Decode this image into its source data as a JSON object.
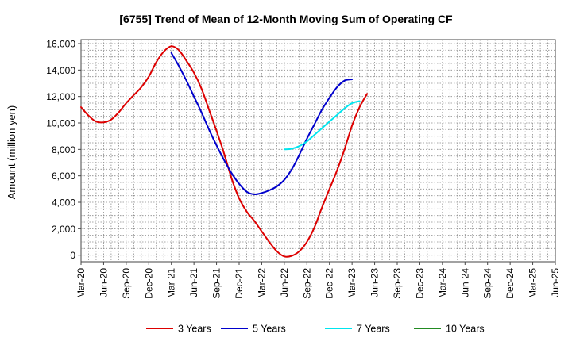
{
  "chart_data": {
    "type": "line",
    "title": "[6755]  Trend of Mean of 12-Month Moving Sum of Operating CF",
    "xlabel": "",
    "ylabel": "Amount (million yen)",
    "ylim": [
      -500,
      16300
    ],
    "yticks": [
      0,
      2000,
      4000,
      6000,
      8000,
      10000,
      12000,
      14000,
      16000
    ],
    "ytick_labels": [
      "0",
      "2,000",
      "4,000",
      "6,000",
      "8,000",
      "10,000",
      "12,000",
      "14,000",
      "16,000"
    ],
    "xticks": [
      "Mar-20",
      "Jun-20",
      "Sep-20",
      "Dec-20",
      "Mar-21",
      "Jun-21",
      "Sep-21",
      "Dec-21",
      "Mar-22",
      "Jun-22",
      "Sep-22",
      "Dec-22",
      "Mar-23",
      "Jun-23",
      "Sep-23",
      "Dec-23",
      "Mar-24",
      "Jun-24",
      "Sep-24",
      "Dec-24",
      "Mar-25",
      "Jun-25"
    ],
    "grid": true,
    "legend_position": "bottom",
    "series": [
      {
        "name": "3 Years",
        "color": "#dd0000",
        "points": [
          [
            0,
            11200
          ],
          [
            1,
            10550
          ],
          [
            2,
            10100
          ],
          [
            3,
            10050
          ],
          [
            4,
            10250
          ],
          [
            5,
            10800
          ],
          [
            6,
            11500
          ],
          [
            7,
            12100
          ],
          [
            8,
            12700
          ],
          [
            9,
            13500
          ],
          [
            10,
            14600
          ],
          [
            11,
            15400
          ],
          [
            12,
            15800
          ],
          [
            13,
            15500
          ],
          [
            14,
            14700
          ],
          [
            15,
            13800
          ],
          [
            16,
            12600
          ],
          [
            17,
            11000
          ],
          [
            18,
            9400
          ],
          [
            19,
            7700
          ],
          [
            20,
            5800
          ],
          [
            21,
            4300
          ],
          [
            22,
            3300
          ],
          [
            23,
            2600
          ],
          [
            24,
            1800
          ],
          [
            25,
            1000
          ],
          [
            26,
            300
          ],
          [
            27,
            -100
          ],
          [
            28,
            -50
          ],
          [
            29,
            300
          ],
          [
            30,
            1000
          ],
          [
            31,
            2100
          ],
          [
            32,
            3600
          ],
          [
            33,
            5000
          ],
          [
            34,
            6400
          ],
          [
            35,
            8000
          ],
          [
            36,
            9800
          ],
          [
            37,
            11200
          ],
          [
            38,
            12200
          ]
        ]
      },
      {
        "name": "5 Years",
        "color": "#0000cc",
        "points": [
          [
            12,
            15300
          ],
          [
            13,
            14300
          ],
          [
            14,
            13200
          ],
          [
            15,
            12000
          ],
          [
            16,
            10800
          ],
          [
            17,
            9500
          ],
          [
            18,
            8300
          ],
          [
            19,
            7200
          ],
          [
            20,
            6200
          ],
          [
            21,
            5400
          ],
          [
            22,
            4800
          ],
          [
            23,
            4600
          ],
          [
            24,
            4700
          ],
          [
            25,
            4900
          ],
          [
            26,
            5200
          ],
          [
            27,
            5700
          ],
          [
            28,
            6500
          ],
          [
            29,
            7600
          ],
          [
            30,
            8800
          ],
          [
            31,
            9900
          ],
          [
            32,
            11000
          ],
          [
            33,
            11900
          ],
          [
            34,
            12700
          ],
          [
            35,
            13200
          ],
          [
            36,
            13300
          ]
        ]
      },
      {
        "name": "7 Years",
        "color": "#00e5ee",
        "points": [
          [
            27,
            8000
          ],
          [
            28,
            8050
          ],
          [
            29,
            8250
          ],
          [
            30,
            8600
          ],
          [
            31,
            9100
          ],
          [
            32,
            9600
          ],
          [
            33,
            10100
          ],
          [
            34,
            10600
          ],
          [
            35,
            11100
          ],
          [
            36,
            11500
          ],
          [
            37,
            11650
          ]
        ]
      },
      {
        "name": "10 Years",
        "color": "#228b22",
        "points": []
      }
    ]
  }
}
